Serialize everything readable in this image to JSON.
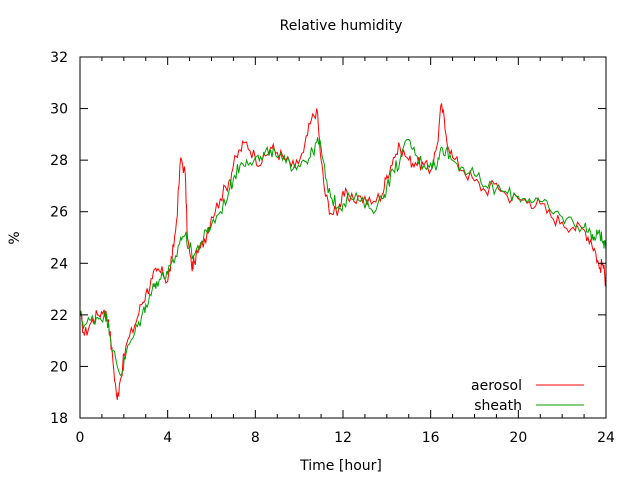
{
  "chart_data": {
    "type": "line",
    "title": "Relative humidity",
    "xlabel": "Time [hour]",
    "ylabel": "%",
    "xlim": [
      0,
      24
    ],
    "ylim": [
      18,
      32
    ],
    "xticks": [
      0,
      4,
      8,
      12,
      16,
      20,
      24
    ],
    "yticks": [
      18,
      20,
      22,
      24,
      26,
      28,
      30,
      32
    ],
    "grid": false,
    "legend": "bottom-right",
    "series": [
      {
        "name": "aerosol",
        "color": "#ff0000",
        "x": [
          0,
          0.2,
          0.5,
          0.8,
          1.1,
          1.3,
          1.5,
          1.7,
          1.8,
          2.1,
          2.5,
          2.8,
          3.0,
          3.3,
          3.5,
          3.8,
          4.0,
          4.2,
          4.4,
          4.6,
          4.8,
          4.9,
          5.1,
          5.2,
          5.5,
          5.8,
          6.0,
          6.4,
          6.8,
          7.0,
          7.3,
          7.6,
          8.0,
          8.3,
          8.7,
          9.0,
          9.4,
          9.8,
          10.2,
          10.5,
          10.8,
          11.0,
          11.2,
          11.5,
          11.8,
          12.0,
          12.3,
          12.8,
          13.3,
          13.8,
          14.0,
          14.3,
          14.6,
          15.0,
          15.3,
          15.7,
          16.0,
          16.3,
          16.5,
          16.7,
          17.0,
          17.5,
          18.0,
          18.5,
          19.0,
          19.5,
          20.0,
          20.5,
          21.0,
          21.5,
          22.0,
          22.5,
          23.0,
          23.3,
          23.5,
          23.7,
          23.85,
          24.0
        ],
        "y": [
          22.1,
          21.2,
          21.7,
          22.0,
          22.2,
          21.8,
          20.2,
          18.7,
          19.3,
          20.8,
          21.6,
          22.4,
          22.8,
          23.4,
          23.7,
          23.6,
          23.3,
          24.2,
          25.6,
          28.1,
          27.5,
          25.0,
          23.8,
          24.1,
          24.6,
          25.2,
          25.8,
          26.5,
          27.2,
          27.8,
          28.4,
          28.7,
          28.1,
          27.9,
          28.5,
          28.3,
          28.0,
          27.7,
          28.3,
          29.4,
          30.0,
          28.0,
          26.6,
          25.9,
          26.1,
          26.8,
          26.4,
          26.6,
          26.3,
          26.7,
          27.4,
          28.1,
          28.5,
          28.0,
          27.9,
          27.8,
          27.6,
          28.6,
          30.2,
          29.0,
          28.1,
          27.6,
          27.2,
          26.8,
          27.1,
          26.6,
          26.5,
          26.4,
          26.3,
          25.8,
          25.6,
          25.4,
          25.3,
          24.9,
          24.5,
          23.8,
          24.0,
          23.2
        ]
      },
      {
        "name": "sheath",
        "color": "#00a000",
        "x": [
          0,
          0.2,
          0.5,
          0.8,
          1.1,
          1.3,
          1.5,
          1.7,
          1.9,
          2.1,
          2.5,
          2.8,
          3.0,
          3.3,
          3.5,
          3.8,
          4.0,
          4.3,
          4.6,
          4.8,
          5.0,
          5.2,
          5.5,
          5.8,
          6.0,
          6.4,
          6.8,
          7.0,
          7.3,
          7.6,
          8.0,
          8.3,
          8.7,
          9.0,
          9.4,
          9.8,
          10.2,
          10.5,
          10.8,
          11.0,
          11.2,
          11.5,
          11.8,
          12.0,
          12.3,
          12.8,
          13.3,
          13.8,
          14.0,
          14.3,
          14.6,
          15.0,
          15.3,
          15.7,
          16.0,
          16.3,
          16.5,
          16.7,
          17.0,
          17.5,
          18.0,
          18.5,
          19.0,
          19.5,
          20.0,
          20.5,
          21.0,
          21.5,
          22.0,
          22.5,
          23.0,
          23.3,
          23.5,
          23.7,
          23.85,
          24.0
        ],
        "y": [
          22.0,
          21.6,
          21.8,
          21.9,
          22.0,
          21.7,
          20.6,
          20.0,
          19.7,
          20.5,
          21.3,
          21.9,
          22.4,
          23.0,
          23.3,
          23.5,
          23.6,
          24.0,
          25.0,
          25.1,
          24.6,
          24.3,
          24.8,
          25.2,
          25.5,
          26.0,
          26.8,
          27.3,
          27.8,
          28.0,
          28.1,
          28.0,
          28.4,
          28.1,
          27.9,
          27.8,
          28.0,
          28.1,
          28.7,
          28.5,
          27.3,
          26.5,
          26.2,
          26.3,
          26.6,
          26.4,
          26.1,
          26.5,
          27.0,
          27.6,
          28.0,
          28.8,
          28.2,
          27.8,
          27.9,
          27.8,
          28.5,
          28.4,
          28.0,
          27.7,
          27.4,
          27.0,
          26.9,
          26.7,
          26.6,
          26.5,
          26.4,
          26.0,
          25.8,
          25.6,
          25.4,
          25.2,
          24.9,
          25.3,
          24.8,
          24.5
        ]
      }
    ]
  }
}
